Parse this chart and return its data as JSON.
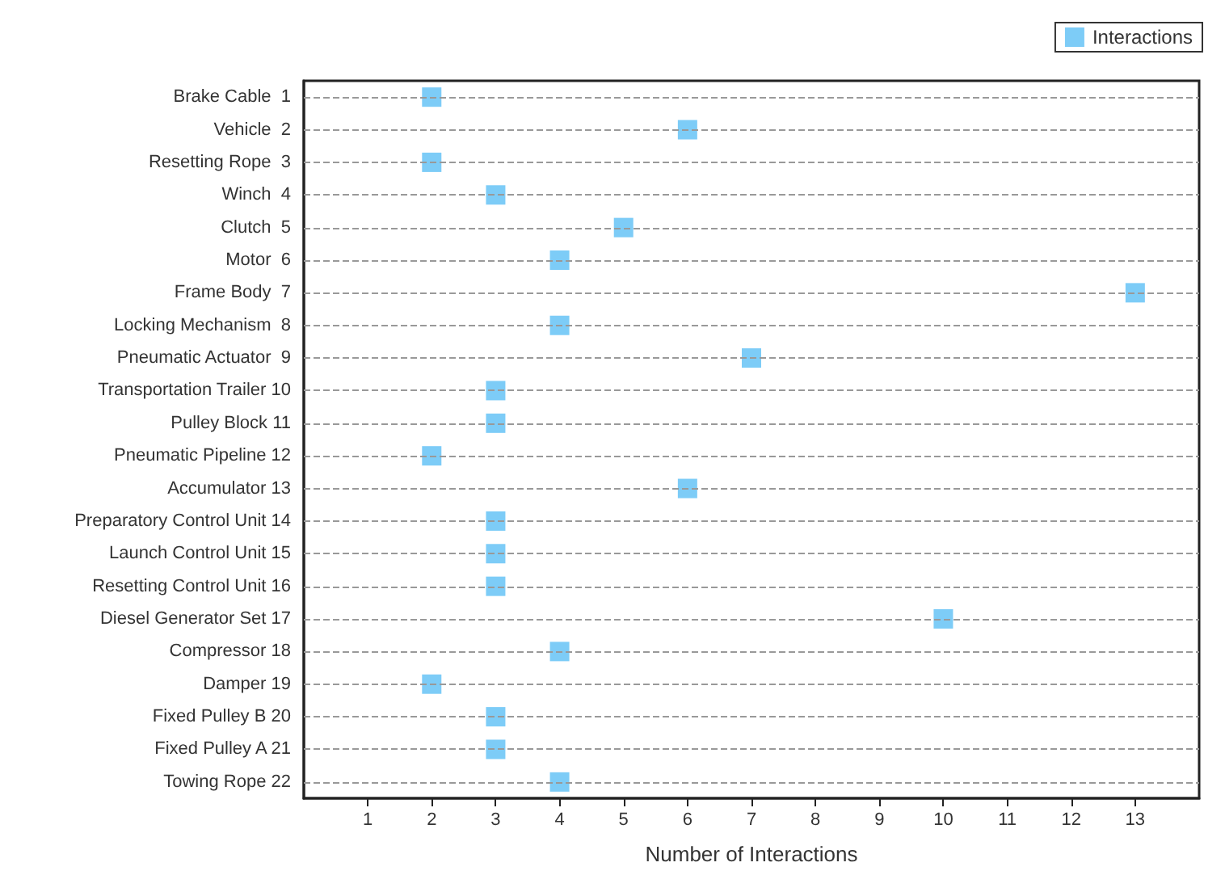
{
  "chart_data": {
    "type": "scatter",
    "orientation": "horizontal",
    "xlabel": "Number of Interactions",
    "categories": [
      "Brake Cable  1",
      "Vehicle  2",
      "Resetting Rope  3",
      "Winch  4",
      "Clutch  5",
      "Motor  6",
      "Frame Body  7",
      "Locking Mechanism  8",
      "Pneumatic Actuator  9",
      "Transportation Trailer 10",
      "Pulley Block 11",
      "Pneumatic Pipeline 12",
      "Accumulator 13",
      "Preparatory Control Unit 14",
      "Launch Control Unit 15",
      "Resetting Control Unit 16",
      "Diesel Generator Set 17",
      "Compressor 18",
      "Damper 19",
      "Fixed Pulley B 20",
      "Fixed Pulley A 21",
      "Towing Rope 22"
    ],
    "series": [
      {
        "name": "Interactions",
        "color": "#5cbff5",
        "values": [
          2,
          6,
          2,
          3,
          5,
          4,
          13,
          4,
          7,
          3,
          3,
          2,
          6,
          3,
          3,
          3,
          10,
          4,
          2,
          3,
          3,
          4
        ]
      }
    ],
    "xlim": [
      0,
      14
    ],
    "xticks": [
      1,
      2,
      3,
      4,
      5,
      6,
      7,
      8,
      9,
      10,
      11,
      12,
      13
    ],
    "grid": "y",
    "legend": "top right",
    "marker": "square"
  }
}
